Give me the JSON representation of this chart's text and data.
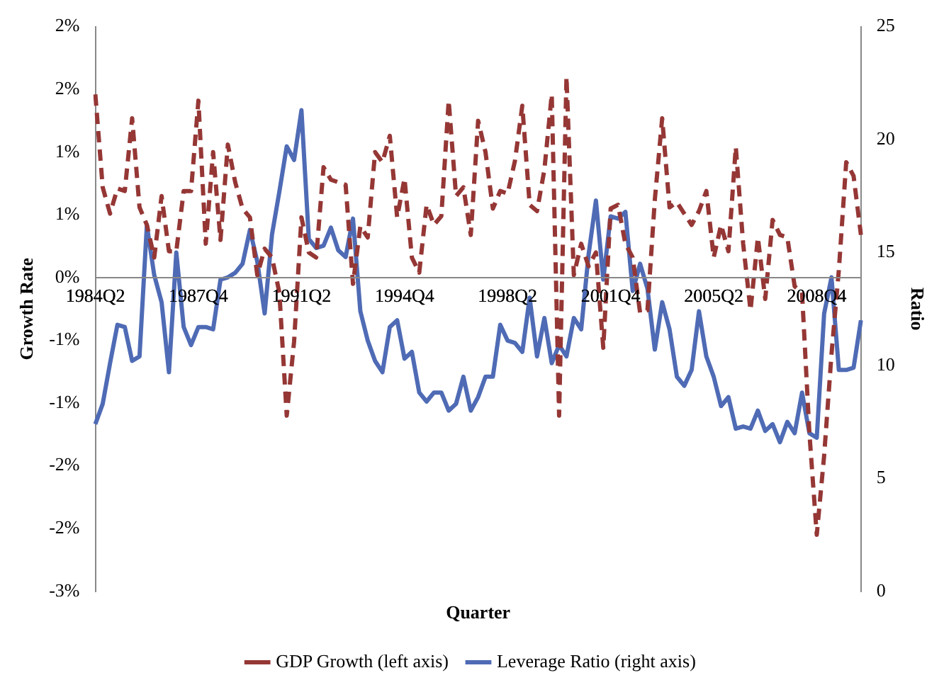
{
  "chart_data": {
    "type": "line",
    "xlabel": "Quarter",
    "ylabel": "Growth Rate",
    "y2label": "Ratio",
    "categories": [
      "1984Q2",
      null,
      null,
      null,
      null,
      null,
      null,
      null,
      null,
      null,
      null,
      null,
      null,
      null,
      "1987Q4",
      null,
      null,
      null,
      null,
      null,
      null,
      null,
      null,
      null,
      null,
      null,
      null,
      null,
      "1991Q2",
      null,
      null,
      null,
      null,
      null,
      null,
      null,
      null,
      null,
      null,
      null,
      null,
      null,
      "1994Q4",
      null,
      null,
      null,
      null,
      null,
      null,
      null,
      null,
      null,
      null,
      null,
      null,
      null,
      "1998Q2",
      null,
      null,
      null,
      null,
      null,
      null,
      null,
      null,
      null,
      null,
      null,
      null,
      null,
      "2001Q4",
      null,
      null,
      null,
      null,
      null,
      null,
      null,
      null,
      null,
      null,
      null,
      null,
      null,
      "2005Q2",
      null,
      null,
      null,
      null,
      null,
      null,
      null,
      null,
      null,
      null,
      null,
      null,
      null,
      "2008Q4",
      null,
      null,
      null,
      null,
      null,
      null
    ],
    "series": [
      {
        "name": "GDP Growth (left axis)",
        "color": "#953735",
        "line_style": "dashed",
        "values": [
          1.46,
          0.72,
          0.51,
          0.71,
          0.69,
          1.27,
          0.56,
          0.42,
          0.16,
          0.65,
          0.21,
          0.21,
          0.69,
          0.69,
          1.41,
          0.27,
          1.0,
          0.3,
          1.06,
          0.76,
          0.55,
          0.48,
          0.02,
          0.23,
          0.16,
          -0.12,
          -1.1,
          -0.51,
          0.48,
          0.2,
          0.16,
          0.88,
          0.78,
          0.76,
          0.74,
          -0.05,
          0.41,
          0.32,
          1.0,
          0.92,
          1.13,
          0.48,
          0.79,
          0.16,
          0.04,
          0.58,
          0.42,
          0.49,
          1.41,
          0.65,
          0.72,
          0.34,
          1.25,
          1.0,
          0.55,
          0.69,
          0.67,
          0.93,
          1.37,
          0.58,
          0.53,
          0.86,
          1.46,
          -1.1,
          1.6,
          0.02,
          0.27,
          0.09,
          0.2,
          -0.56,
          0.55,
          0.58,
          0.27,
          0.16,
          -0.28,
          -0.26,
          0.62,
          1.27,
          0.56,
          0.6,
          0.51,
          0.42,
          0.53,
          0.69,
          0.16,
          0.42,
          0.21,
          1.04,
          0.27,
          -0.26,
          0.32,
          -0.17,
          0.46,
          0.34,
          0.32,
          -0.07,
          -0.12,
          -1.24,
          -2.05,
          -1.42,
          -0.61,
          0.06,
          0.92,
          0.81,
          0.34
        ]
      },
      {
        "name": "Leverage Ratio (right axis)",
        "color": "#4f6bb5",
        "line_style": "solid",
        "axis": "y2",
        "values": [
          7.4,
          8.3,
          10.1,
          11.8,
          11.7,
          10.2,
          10.4,
          16.2,
          14.0,
          12.8,
          9.7,
          15.0,
          11.7,
          10.9,
          11.7,
          11.7,
          11.6,
          13.8,
          13.9,
          14.1,
          14.5,
          16.0,
          14.6,
          12.3,
          15.8,
          17.7,
          19.7,
          19.1,
          21.3,
          15.6,
          15.2,
          15.3,
          16.1,
          15.1,
          14.8,
          16.5,
          12.4,
          11.1,
          10.2,
          9.7,
          11.7,
          12.0,
          10.3,
          10.6,
          8.8,
          8.4,
          8.8,
          8.8,
          8.0,
          8.3,
          9.5,
          8.0,
          8.6,
          9.5,
          9.5,
          11.8,
          11.1,
          11.0,
          10.6,
          13.0,
          10.4,
          12.1,
          10.1,
          10.9,
          10.4,
          12.1,
          11.6,
          14.9,
          17.3,
          13.8,
          16.6,
          16.5,
          16.8,
          13.3,
          14.5,
          13.4,
          10.7,
          12.8,
          11.6,
          9.5,
          9.1,
          9.8,
          12.4,
          10.4,
          9.5,
          8.2,
          8.6,
          7.2,
          7.3,
          7.2,
          8.0,
          7.1,
          7.4,
          6.6,
          7.5,
          7.0,
          8.8,
          7.0,
          6.8,
          12.3,
          13.9,
          9.8,
          9.8,
          9.9,
          12.0
        ]
      }
    ],
    "ylim": [
      -2.5,
      2.0
    ],
    "yticks": [
      {
        "value": 2,
        "label": "2%"
      },
      {
        "value": 1.5,
        "label": "2%"
      },
      {
        "value": 1,
        "label": "1%"
      },
      {
        "value": 0.5,
        "label": "1%"
      },
      {
        "value": 0,
        "label": "0%"
      },
      {
        "value": -0.5,
        "label": "-1%"
      },
      {
        "value": -1,
        "label": "-1%"
      },
      {
        "value": -1.5,
        "label": "-2%"
      },
      {
        "value": -2,
        "label": "-2%"
      },
      {
        "value": -2.5,
        "label": "-3%"
      }
    ],
    "y2lim": [
      0,
      25
    ],
    "y2ticks": [
      0,
      5,
      10,
      15,
      20,
      25
    ],
    "grid": false,
    "legend": "bottom",
    "marker": "none"
  }
}
